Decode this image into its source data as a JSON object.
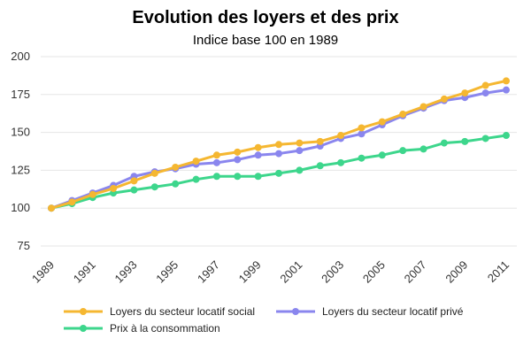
{
  "chart_data": {
    "type": "line",
    "title": "Evolution des loyers et des prix",
    "subtitle": "Indice base 100 en 1989",
    "xlabel": "",
    "ylabel": "",
    "x": [
      1989,
      1990,
      1991,
      1992,
      1993,
      1994,
      1995,
      1996,
      1997,
      1998,
      1999,
      2000,
      2001,
      2002,
      2003,
      2004,
      2005,
      2006,
      2007,
      2008,
      2009,
      2010,
      2011
    ],
    "x_tick_labels": [
      "1989",
      "1991",
      "1993",
      "1995",
      "1997",
      "1999",
      "2001",
      "2003",
      "2005",
      "2007",
      "2009",
      "2011"
    ],
    "ylim": [
      75,
      200
    ],
    "y_ticks": [
      75,
      100,
      125,
      150,
      175,
      200
    ],
    "grid": true,
    "legend_position": "bottom",
    "series": [
      {
        "name": "Loyers du secteur locatif social",
        "color": "#f5b731",
        "values": [
          100,
          104,
          109,
          113,
          118,
          123,
          127,
          131,
          135,
          137,
          140,
          142,
          143,
          144,
          148,
          153,
          157,
          162,
          167,
          172,
          176,
          181,
          184
        ]
      },
      {
        "name": "Loyers du secteur locatif privé",
        "color": "#8a86ee",
        "values": [
          100,
          105,
          110,
          115,
          121,
          124,
          126,
          129,
          130,
          132,
          135,
          136,
          138,
          141,
          146,
          149,
          155,
          161,
          166,
          171,
          173,
          176,
          178
        ]
      },
      {
        "name": "Prix à la consommation",
        "color": "#3dd68c",
        "values": [
          100,
          103,
          107,
          110,
          112,
          114,
          116,
          119,
          121,
          121,
          121,
          123,
          125,
          128,
          130,
          133,
          135,
          138,
          139,
          143,
          144,
          146,
          148
        ]
      }
    ]
  }
}
